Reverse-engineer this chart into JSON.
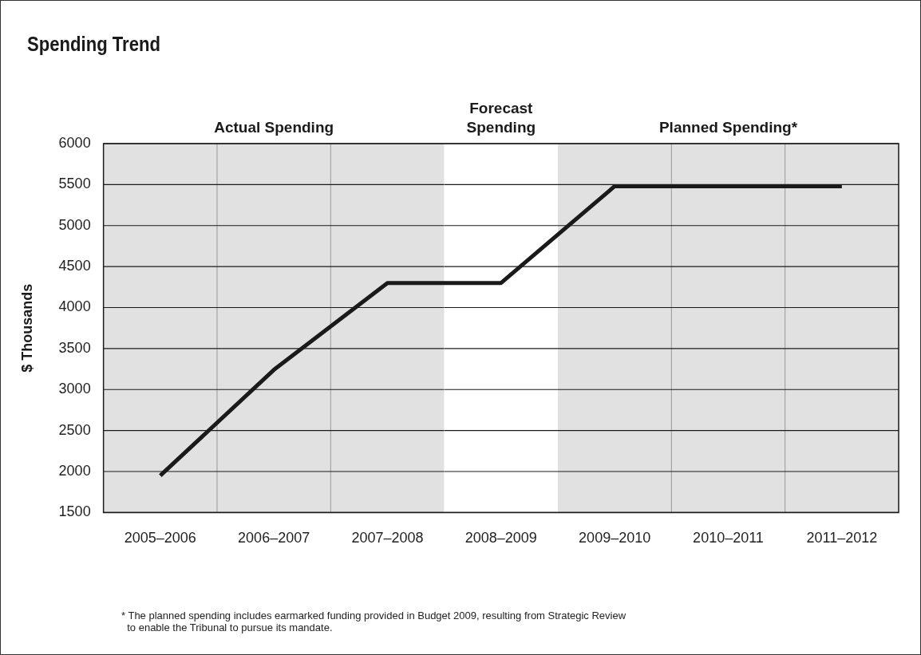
{
  "chart_data": {
    "type": "line",
    "title": "Spending Trend",
    "ylabel": "$ Thousands",
    "categories": [
      "2005–2006",
      "2006–2007",
      "2007–2008",
      "2008–2009",
      "2009–2010",
      "2010–2011",
      "2011–2012"
    ],
    "series": [
      {
        "color": "#1a1a1a",
        "values": [
          1950,
          3240,
          4300,
          4300,
          5480,
          5480,
          5480
        ]
      }
    ],
    "ylim": [
      1500,
      6000
    ],
    "yticks": [
      1500,
      2000,
      2500,
      3000,
      3500,
      4000,
      4500,
      5000,
      5500,
      6000
    ],
    "grid": true,
    "legend": false,
    "marker": "none",
    "line_style": "solid",
    "bands": [
      {
        "axis": "x",
        "from": "2005–2006",
        "to": "2007–2008",
        "label": "Actual Spending",
        "color": "#e1e1e2"
      },
      {
        "axis": "x",
        "from": "2008–2009",
        "to": "2008–2009",
        "label": "Forecast Spending",
        "color": "#ffffff"
      },
      {
        "axis": "x",
        "from": "2009–2010",
        "to": "2011–2012",
        "label": "Planned Spending*",
        "color": "#e1e1e2"
      }
    ],
    "annotations": [
      "* The planned spending includes earmarked funding provided in Budget 2009, resulting from Strategic Review\n  to enable the Tribunal to pursue its mandate."
    ]
  }
}
